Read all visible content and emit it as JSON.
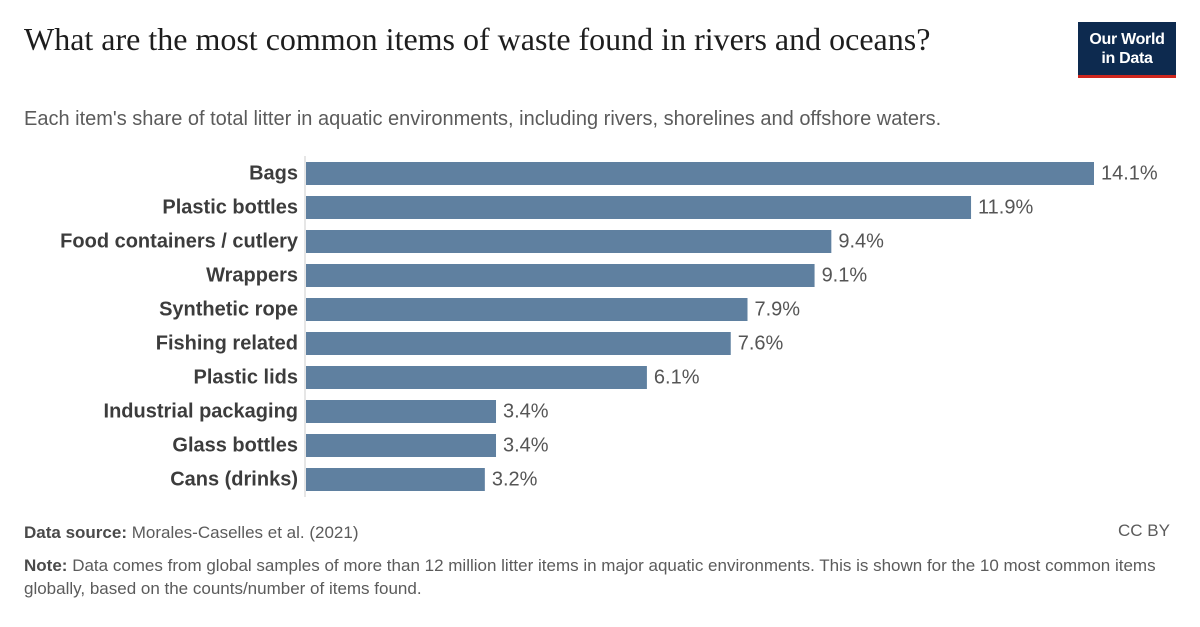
{
  "header": {
    "title": "What are the most common items of waste found in rivers and oceans?",
    "subtitle": "Each item's share of total litter in aquatic environments, including rivers, shorelines and offshore waters.",
    "logo_line1": "Our World",
    "logo_line2": "in Data"
  },
  "footer": {
    "source_label": "Data source:",
    "source_text": "Morales-Caselles et al. (2021)",
    "license": "CC BY",
    "note_label": "Note:",
    "note_text": "Data comes from global samples of more than 12 million litter items in major aquatic environments. This is shown for the 10 most common items globally, based on the counts/number of items found."
  },
  "colors": {
    "bar": "#5f80a0",
    "axis": "#cccccc",
    "label": "#3c3c3c",
    "value": "#555555"
  },
  "chart_data": {
    "type": "bar",
    "orientation": "horizontal",
    "categories": [
      "Bags",
      "Plastic bottles",
      "Food containers / cutlery",
      "Wrappers",
      "Synthetic rope",
      "Fishing related",
      "Plastic lids",
      "Industrial packaging",
      "Glass bottles",
      "Cans (drinks)"
    ],
    "values": [
      14.1,
      11.9,
      9.4,
      9.1,
      7.9,
      7.6,
      6.1,
      3.4,
      3.4,
      3.2
    ],
    "value_labels": [
      "14.1%",
      "11.9%",
      "9.4%",
      "9.1%",
      "7.9%",
      "7.6%",
      "6.1%",
      "3.4%",
      "3.4%",
      "3.2%"
    ],
    "xlim": [
      0,
      14.1
    ],
    "grid": false,
    "legend": "none"
  }
}
